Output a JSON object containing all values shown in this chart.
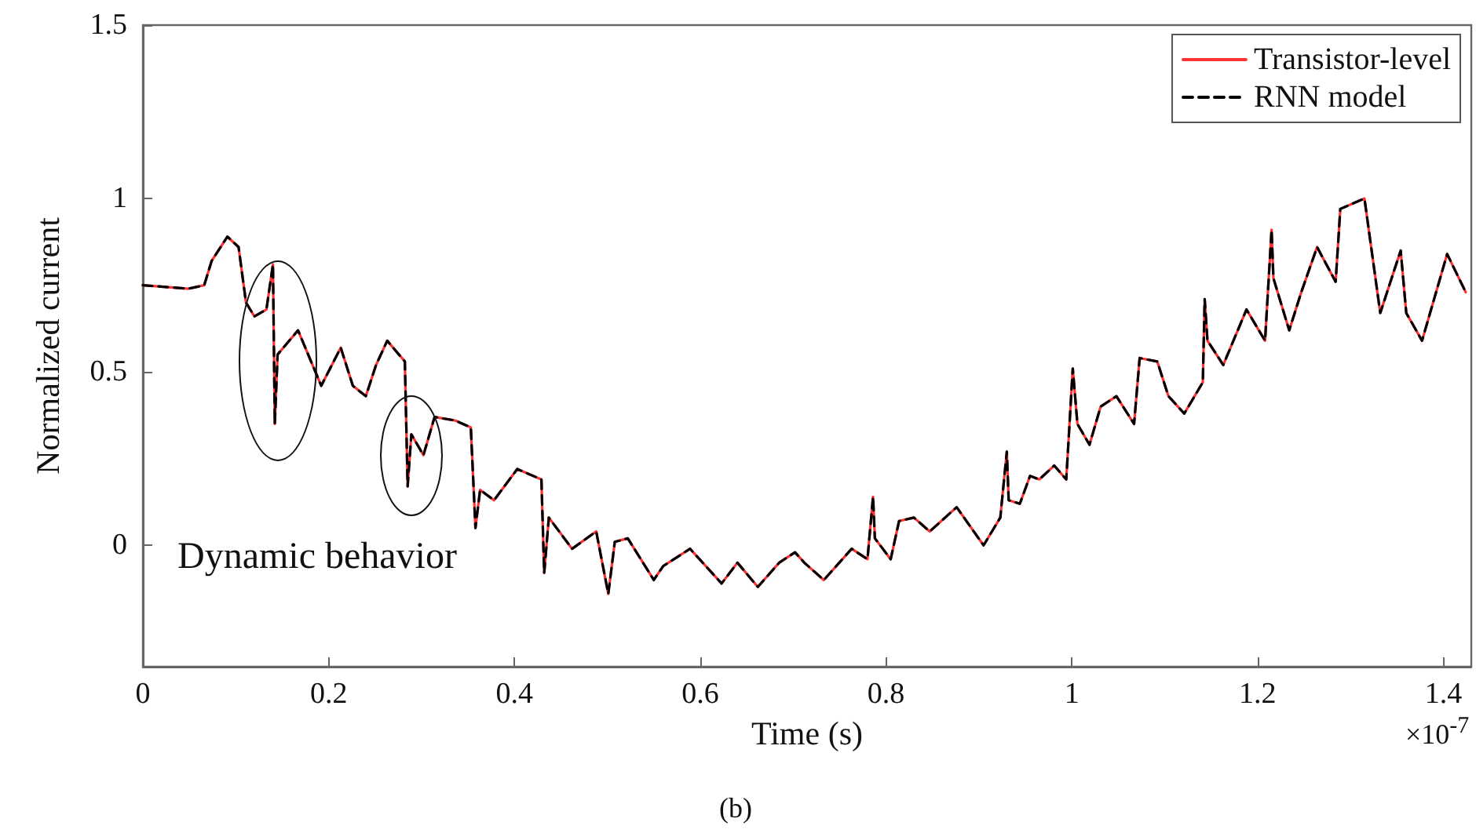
{
  "chart_data": {
    "type": "line",
    "xlabel": "Time (s)",
    "ylabel": "Normalized current",
    "x": [
      0,
      0.049,
      0.066,
      0.074,
      0.091,
      0.103,
      0.111,
      0.12,
      0.133,
      0.14,
      0.142,
      0.145,
      0.167,
      0.192,
      0.213,
      0.226,
      0.24,
      0.251,
      0.263,
      0.282,
      0.285,
      0.289,
      0.302,
      0.314,
      0.336,
      0.353,
      0.358,
      0.363,
      0.378,
      0.403,
      0.429,
      0.432,
      0.437,
      0.462,
      0.488,
      0.501,
      0.508,
      0.522,
      0.55,
      0.56,
      0.589,
      0.623,
      0.64,
      0.662,
      0.685,
      0.702,
      0.712,
      0.733,
      0.763,
      0.78,
      0.786,
      0.788,
      0.805,
      0.814,
      0.83,
      0.847,
      0.876,
      0.905,
      0.923,
      0.93,
      0.932,
      0.944,
      0.955,
      0.965,
      0.981,
      0.994,
      1.001,
      1.006,
      1.019,
      1.031,
      1.048,
      1.067,
      1.073,
      1.092,
      1.104,
      1.121,
      1.141,
      1.143,
      1.146,
      1.163,
      1.188,
      1.208,
      1.215,
      1.217,
      1.234,
      1.247,
      1.264,
      1.284,
      1.289,
      1.315,
      1.332,
      1.354,
      1.36,
      1.377,
      1.404,
      1.424
    ],
    "series": [
      {
        "name": "Transistor-level",
        "color": "#ff3333",
        "line_style": "solid",
        "values": [
          0.75,
          0.74,
          0.75,
          0.82,
          0.89,
          0.86,
          0.7,
          0.66,
          0.68,
          0.81,
          0.35,
          0.55,
          0.62,
          0.46,
          0.57,
          0.46,
          0.43,
          0.52,
          0.59,
          0.53,
          0.17,
          0.32,
          0.26,
          0.37,
          0.36,
          0.34,
          0.05,
          0.16,
          0.13,
          0.22,
          0.19,
          -0.08,
          0.08,
          -0.01,
          0.04,
          -0.14,
          0.01,
          0.02,
          -0.1,
          -0.06,
          -0.01,
          -0.11,
          -0.05,
          -0.12,
          -0.05,
          -0.02,
          -0.05,
          -0.1,
          -0.01,
          -0.04,
          0.14,
          0.02,
          -0.04,
          0.07,
          0.08,
          0.04,
          0.11,
          0.0,
          0.08,
          0.27,
          0.13,
          0.12,
          0.2,
          0.19,
          0.23,
          0.19,
          0.51,
          0.35,
          0.29,
          0.4,
          0.43,
          0.35,
          0.54,
          0.53,
          0.43,
          0.38,
          0.47,
          0.71,
          0.59,
          0.52,
          0.68,
          0.59,
          0.91,
          0.77,
          0.62,
          0.73,
          0.86,
          0.76,
          0.97,
          1.0,
          0.67,
          0.85,
          0.67,
          0.59,
          0.84,
          0.73
        ]
      },
      {
        "name": "RNN model",
        "color": "#000000",
        "line_style": "dashed",
        "values": [
          0.75,
          0.74,
          0.75,
          0.82,
          0.89,
          0.86,
          0.7,
          0.66,
          0.68,
          0.81,
          0.35,
          0.55,
          0.62,
          0.46,
          0.57,
          0.46,
          0.43,
          0.52,
          0.59,
          0.53,
          0.17,
          0.32,
          0.26,
          0.37,
          0.36,
          0.34,
          0.05,
          0.16,
          0.13,
          0.22,
          0.19,
          -0.08,
          0.08,
          -0.01,
          0.04,
          -0.14,
          0.01,
          0.02,
          -0.1,
          -0.06,
          -0.01,
          -0.11,
          -0.05,
          -0.12,
          -0.05,
          -0.02,
          -0.05,
          -0.1,
          -0.01,
          -0.04,
          0.14,
          0.02,
          -0.04,
          0.07,
          0.08,
          0.04,
          0.11,
          0.0,
          0.08,
          0.27,
          0.13,
          0.12,
          0.2,
          0.19,
          0.23,
          0.19,
          0.51,
          0.35,
          0.29,
          0.4,
          0.43,
          0.35,
          0.54,
          0.53,
          0.43,
          0.38,
          0.47,
          0.71,
          0.59,
          0.52,
          0.68,
          0.59,
          0.91,
          0.77,
          0.62,
          0.73,
          0.86,
          0.76,
          0.97,
          1.0,
          0.67,
          0.85,
          0.67,
          0.59,
          0.84,
          0.73
        ]
      }
    ],
    "xlim": [
      0,
      1.43
    ],
    "xticks": [
      0,
      0.2,
      0.4,
      0.6,
      0.8,
      1,
      1.2,
      1.4
    ],
    "ylim": [
      -0.35,
      1.5
    ],
    "yticks": [
      0,
      0.5,
      1,
      1.5
    ],
    "grid": false,
    "legend": "top right",
    "marker": "none",
    "annotations": [
      "Dynamic behavior",
      "×10$^{-7}$",
      "(b)"
    ]
  }
}
